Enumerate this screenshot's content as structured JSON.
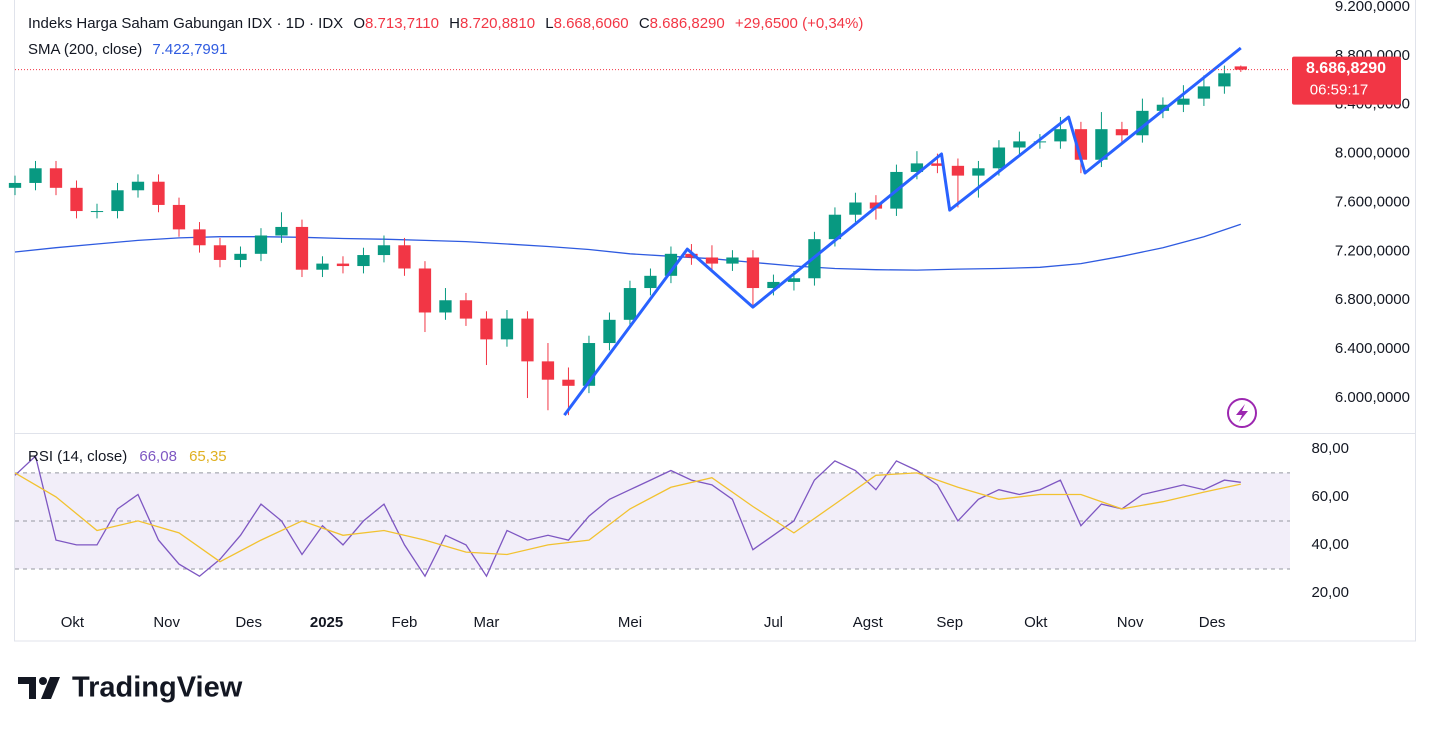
{
  "chart_data": {
    "type": "candlestick",
    "header": {
      "symbol": "Indeks Harga Saham Gabungan IDX · 1D · IDX",
      "ohlc": [
        {
          "key": "O",
          "value": "8.713,7110"
        },
        {
          "key": "H",
          "value": "8.720,8810"
        },
        {
          "key": "L",
          "value": "8.668,6060"
        },
        {
          "key": "C",
          "value": "8.686,8290"
        }
      ],
      "change": "+29,6500 (+0,34%)"
    },
    "up_color": "#089981",
    "down_color": "#f23645",
    "x": [
      0,
      5,
      10,
      15,
      20,
      25,
      30,
      35,
      40,
      45,
      50,
      55,
      60,
      65,
      70,
      75,
      80,
      85,
      90,
      95,
      100,
      105,
      110,
      115,
      120,
      125,
      130,
      135,
      140,
      145,
      150,
      155,
      160,
      165,
      170,
      175,
      180,
      185,
      190,
      195,
      200,
      205,
      210,
      215,
      220,
      225,
      230,
      235,
      240,
      245,
      250,
      255,
      260,
      265,
      270,
      275,
      280,
      285,
      290,
      295,
      299
    ],
    "open": [
      7720,
      7760,
      7880,
      7720,
      7530,
      7530,
      7700,
      7770,
      7580,
      7380,
      7250,
      7130,
      7180,
      7330,
      7400,
      7050,
      7100,
      7080,
      7170,
      7250,
      7060,
      6700,
      6800,
      6650,
      6480,
      6650,
      6300,
      6150,
      6100,
      6450,
      6640,
      6900,
      7000,
      7180,
      7150,
      7100,
      7150,
      6900,
      6950,
      6980,
      7300,
      7500,
      7600,
      7550,
      7850,
      7920,
      7900,
      7820,
      7880,
      8050,
      8100,
      8100,
      8200,
      7950,
      8200,
      8150,
      8350,
      8400,
      8450,
      8550,
      8713.711
    ],
    "high": [
      7820,
      7940,
      7940,
      7780,
      7590,
      7760,
      7830,
      7830,
      7640,
      7440,
      7310,
      7240,
      7390,
      7520,
      7460,
      7160,
      7160,
      7230,
      7330,
      7310,
      7120,
      6900,
      6860,
      6710,
      6720,
      6710,
      6450,
      6250,
      6510,
      6700,
      6960,
      7060,
      7240,
      7260,
      7250,
      7210,
      7210,
      7010,
      7040,
      7360,
      7560,
      7680,
      7660,
      7910,
      8020,
      8000,
      7960,
      7940,
      8110,
      8180,
      8160,
      8300,
      8260,
      8340,
      8260,
      8450,
      8460,
      8560,
      8640,
      8720,
      8720.881
    ],
    "low": [
      7660,
      7700,
      7660,
      7470,
      7470,
      7470,
      7640,
      7520,
      7320,
      7190,
      7070,
      7070,
      7120,
      7270,
      6990,
      6990,
      7020,
      7020,
      7110,
      7000,
      6540,
      6640,
      6590,
      6270,
      6420,
      6000,
      5900,
      5860,
      6040,
      6390,
      6580,
      6840,
      6940,
      7090,
      7040,
      7040,
      6760,
      6840,
      6880,
      6920,
      7240,
      7440,
      7460,
      7490,
      7790,
      7840,
      7560,
      7640,
      7820,
      7990,
      8040,
      8040,
      7840,
      7890,
      8090,
      8090,
      8290,
      8340,
      8390,
      8490,
      8668.606
    ],
    "close": [
      7760,
      7880,
      7720,
      7530,
      7530,
      7700,
      7770,
      7580,
      7380,
      7250,
      7130,
      7180,
      7330,
      7400,
      7050,
      7100,
      7080,
      7170,
      7250,
      7060,
      6700,
      6800,
      6650,
      6480,
      6650,
      6300,
      6150,
      6100,
      6450,
      6640,
      6900,
      7000,
      7180,
      7150,
      7100,
      7150,
      6900,
      6950,
      6980,
      7300,
      7500,
      7600,
      7550,
      7850,
      7920,
      7900,
      7820,
      7880,
      8050,
      8100,
      8100,
      8200,
      7950,
      8200,
      8150,
      8350,
      8400,
      8450,
      8550,
      8657.179,
      8686.829
    ],
    "xlim": [
      0,
      311
    ],
    "xticks": [
      {
        "value": 14,
        "label": "Okt"
      },
      {
        "value": 37,
        "label": "Nov"
      },
      {
        "value": 57,
        "label": "Des"
      },
      {
        "value": 76,
        "label": "2025",
        "bold": true
      },
      {
        "value": 95,
        "label": "Feb"
      },
      {
        "value": 115,
        "label": "Mar"
      },
      {
        "value": 150,
        "label": "Mei"
      },
      {
        "value": 185,
        "label": "Jul"
      },
      {
        "value": 208,
        "label": "Agst"
      },
      {
        "value": 228,
        "label": "Sep"
      },
      {
        "value": 249,
        "label": "Okt"
      },
      {
        "value": 272,
        "label": "Nov"
      },
      {
        "value": 292,
        "label": "Des"
      }
    ],
    "ylim": [
      5722,
      9257
    ],
    "yticks": [
      {
        "value": 6000,
        "label": "6.000,0000"
      },
      {
        "value": 6400,
        "label": "6.400,0000"
      },
      {
        "value": 6800,
        "label": "6.800,0000"
      },
      {
        "value": 7200,
        "label": "7.200,0000"
      },
      {
        "value": 7600,
        "label": "7.600,0000"
      },
      {
        "value": 8000,
        "label": "8.000,0000"
      },
      {
        "value": 8400,
        "label": "8.400,0000"
      },
      {
        "value": 8800,
        "label": "8.800,0000"
      },
      {
        "value": 9200,
        "label": "9.200,0000"
      }
    ],
    "price_tag": {
      "value": "8.686,8290",
      "countdown": "06:59:17",
      "color": "#f23645"
    },
    "sma": {
      "label": "SMA (200, close)",
      "value_label": "7.422,7991",
      "color": "#2f5be0",
      "x": [
        0,
        10,
        20,
        30,
        40,
        50,
        60,
        70,
        80,
        90,
        100,
        110,
        120,
        130,
        140,
        150,
        160,
        170,
        180,
        190,
        200,
        210,
        220,
        230,
        240,
        250,
        260,
        270,
        280,
        290,
        299
      ],
      "values": [
        7195,
        7230,
        7260,
        7290,
        7310,
        7320,
        7320,
        7315,
        7305,
        7300,
        7290,
        7280,
        7260,
        7240,
        7215,
        7180,
        7160,
        7140,
        7110,
        7080,
        7060,
        7050,
        7047,
        7055,
        7060,
        7070,
        7100,
        7160,
        7230,
        7320,
        7422.7991
      ]
    },
    "zigzag": {
      "color": "#2962ff",
      "x": [
        134,
        164,
        180,
        226,
        228,
        257,
        261,
        299
      ],
      "values": [
        5860,
        7219,
        6744,
        7997,
        7538,
        8299,
        7841,
        8864
      ]
    },
    "rsi": {
      "label": "RSI (14, close)",
      "ylim": [
        12.9,
        85.8
      ],
      "yticks": [
        {
          "value": 20,
          "label": "20,00"
        },
        {
          "value": 40,
          "label": "40,00"
        },
        {
          "value": 60,
          "label": "60,00"
        },
        {
          "value": 80,
          "label": "80,00"
        }
      ],
      "levels": [
        70,
        50,
        30
      ],
      "band_color": "#7e57c2",
      "series": [
        {
          "color": "#7e57c2",
          "value_label": "66,08",
          "x": [
            0,
            5,
            10,
            15,
            20,
            25,
            30,
            35,
            40,
            45,
            50,
            55,
            60,
            65,
            70,
            75,
            80,
            85,
            90,
            95,
            100,
            105,
            110,
            115,
            120,
            125,
            130,
            135,
            140,
            145,
            150,
            155,
            160,
            165,
            170,
            175,
            180,
            185,
            190,
            195,
            200,
            205,
            210,
            215,
            220,
            225,
            230,
            235,
            240,
            245,
            250,
            255,
            260,
            265,
            270,
            275,
            280,
            285,
            290,
            295,
            299
          ],
          "values": [
            69,
            77,
            42,
            40,
            40,
            55,
            61,
            42,
            32,
            27,
            34,
            44,
            57,
            50,
            36,
            48,
            40,
            50,
            57,
            40,
            27,
            44,
            40,
            27,
            46,
            42,
            44,
            42,
            52,
            59,
            63,
            67,
            71,
            67,
            65,
            59,
            38,
            44,
            50,
            67,
            75,
            71,
            63,
            75,
            71,
            65,
            50,
            59,
            63,
            61,
            63,
            67,
            48,
            57,
            55,
            61,
            63,
            65,
            63,
            67,
            66.08
          ]
        },
        {
          "color": "#f2c230",
          "value_label": "65,35",
          "x": [
            0,
            10,
            20,
            30,
            40,
            50,
            60,
            70,
            80,
            90,
            100,
            110,
            120,
            130,
            140,
            150,
            160,
            170,
            180,
            190,
            200,
            210,
            220,
            230,
            240,
            250,
            260,
            270,
            280,
            290,
            299
          ],
          "values": [
            70,
            60,
            46,
            50,
            45,
            33,
            42,
            50,
            44,
            46,
            42,
            37,
            36,
            40,
            42,
            55,
            64,
            68,
            56,
            45,
            57,
            69,
            70,
            64,
            59,
            61,
            61,
            55,
            58,
            62,
            65.35
          ]
        }
      ]
    }
  },
  "brand": "TradingView"
}
